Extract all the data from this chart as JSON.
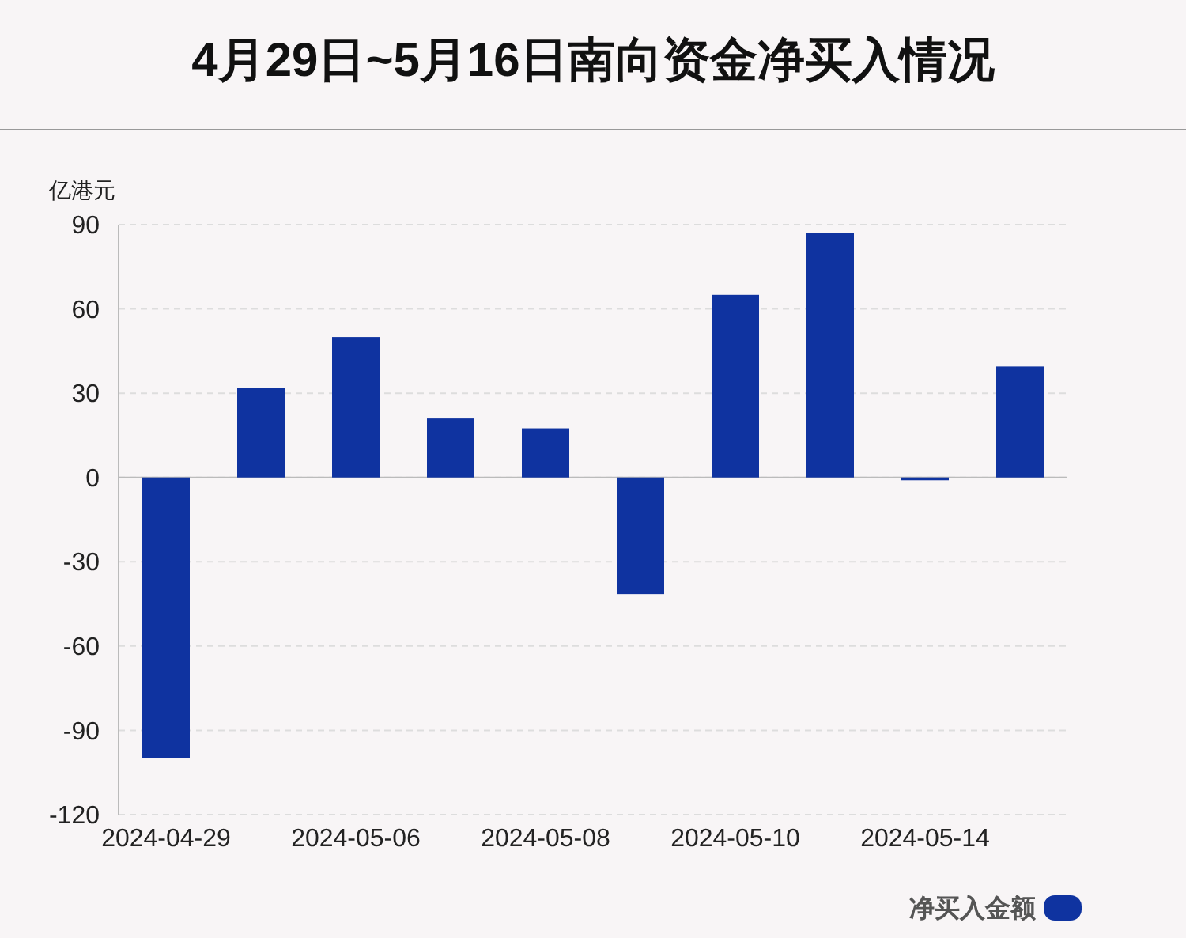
{
  "chart_data": {
    "type": "bar",
    "title": "4月29日~5月16日南向资金净买入情况",
    "ylabel": "亿港元",
    "categories": [
      "2024-04-29",
      null,
      "2024-05-06",
      null,
      "2024-05-08",
      null,
      "2024-05-10",
      null,
      "2024-05-14",
      null
    ],
    "series": [
      {
        "name": "净买入金额",
        "color": "#0f33a0",
        "values": [
          -100,
          32,
          50,
          21,
          17.5,
          -41.5,
          65,
          87,
          -1,
          39.5
        ]
      }
    ],
    "ylim": [
      -120,
      90
    ],
    "yticks": [
      -120,
      -90,
      -60,
      -30,
      0,
      30,
      60,
      90
    ],
    "grid": "y",
    "legend": "bottom right"
  }
}
